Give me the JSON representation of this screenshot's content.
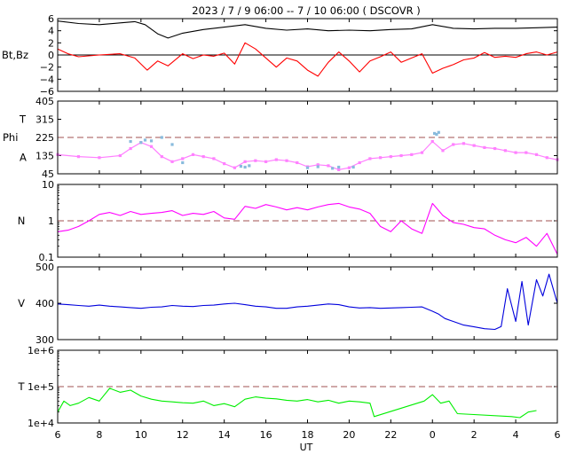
{
  "title": "2023  /  7 /  9   06:00  --   7 / 10   06:00 ( DSCOVR )",
  "xlabel": "UT",
  "colors": {
    "bt": "#000000",
    "bz": "#ff0000",
    "theta": "#aaaaaa",
    "phi": "#88bbdd",
    "angle": "#ff80ff",
    "density": "#ff00ff",
    "speed": "#0000dd",
    "temperature": "#00ee00",
    "refline": "#a05050",
    "frame": "#000000"
  },
  "x_ticks": [
    "6",
    "8",
    "10",
    "12",
    "14",
    "16",
    "18",
    "20",
    "22",
    "0",
    "2",
    "4",
    "6"
  ],
  "chart_data": [
    {
      "type": "line",
      "ylabel": "Bt,Bz",
      "ylim": [
        -6,
        6
      ],
      "yticks": [
        "6",
        "4",
        "2",
        "0",
        "−2",
        "−4",
        "−6"
      ],
      "reference_line": 0,
      "series": [
        {
          "name": "Bt",
          "x": [
            6,
            7,
            8,
            9,
            9.7,
            10.2,
            10.8,
            11.3,
            12,
            13,
            14,
            15,
            16,
            17,
            18,
            19,
            20,
            21,
            22,
            23,
            24,
            25,
            26,
            27,
            28,
            29,
            30
          ],
          "values": [
            5.6,
            5.2,
            5.0,
            5.3,
            5.5,
            5.0,
            3.5,
            2.8,
            3.6,
            4.2,
            4.6,
            5.0,
            4.4,
            4.1,
            4.3,
            4.0,
            4.1,
            4.0,
            4.2,
            4.3,
            5.0,
            4.4,
            4.3,
            4.4,
            4.4,
            4.5,
            4.6
          ]
        },
        {
          "name": "Bz",
          "x": [
            6,
            6.5,
            7,
            8,
            9,
            9.7,
            10.3,
            10.8,
            11.3,
            12,
            12.5,
            13,
            13.5,
            14,
            14.5,
            15,
            15.5,
            16,
            16.5,
            17,
            17.5,
            18,
            18.5,
            19,
            19.5,
            20,
            20.5,
            21,
            21.5,
            22,
            22.5,
            23,
            23.5,
            24,
            24.5,
            25,
            25.5,
            26,
            26.5,
            27,
            27.5,
            28,
            28.5,
            29,
            29.5,
            30
          ],
          "values": [
            1.0,
            0.2,
            -0.3,
            0,
            0.2,
            -0.5,
            -2.5,
            -1.0,
            -1.8,
            0.2,
            -0.6,
            0,
            -0.2,
            0.3,
            -1.5,
            2.0,
            1.0,
            -0.5,
            -2.0,
            -0.5,
            -1.0,
            -2.5,
            -3.5,
            -1.2,
            0.5,
            -1.0,
            -2.8,
            -1.0,
            -0.3,
            0.5,
            -1.2,
            -0.5,
            0.2,
            -3.0,
            -2.2,
            -1.6,
            -0.8,
            -0.5,
            0.4,
            -0.4,
            -0.2,
            -0.4,
            0.2,
            0.5,
            0.0,
            0.5
          ]
        }
      ]
    },
    {
      "type": "scatter",
      "ylabel_lines": [
        "T",
        "Phi",
        "A"
      ],
      "ylim": [
        45,
        405
      ],
      "yticks": [
        "405",
        "315",
        "225",
        "135",
        "45"
      ],
      "reference_line": 225,
      "series": [
        {
          "name": "A",
          "x": [
            6,
            7,
            8,
            9,
            9.5,
            10,
            10.5,
            11,
            11.5,
            12,
            12.5,
            13,
            13.5,
            14,
            14.5,
            15,
            15.5,
            16,
            16.5,
            17,
            17.5,
            18,
            18.5,
            19,
            19.5,
            20,
            20.5,
            21,
            21.5,
            22,
            22.5,
            23,
            23.5,
            24,
            24.5,
            25,
            25.5,
            26,
            26.5,
            27,
            27.5,
            28,
            28.5,
            29,
            29.5,
            30
          ],
          "values": [
            140,
            130,
            125,
            135,
            170,
            200,
            180,
            130,
            105,
            120,
            140,
            130,
            120,
            95,
            75,
            105,
            110,
            105,
            115,
            110,
            100,
            80,
            90,
            85,
            65,
            75,
            100,
            120,
            125,
            130,
            135,
            140,
            150,
            205,
            160,
            190,
            195,
            185,
            175,
            170,
            160,
            150,
            150,
            140,
            125,
            115
          ]
        },
        {
          "name": "Phi",
          "x": [
            9.5,
            10,
            10.2,
            10.5,
            11,
            11.5,
            12,
            14.8,
            15,
            15.2,
            18,
            18.5,
            19.2,
            19.5,
            20.2,
            24.1,
            24.2,
            24.3
          ],
          "values": [
            205,
            200,
            212,
            208,
            225,
            190,
            100,
            82,
            78,
            85,
            75,
            80,
            72,
            78,
            78,
            245,
            240,
            250
          ]
        }
      ]
    },
    {
      "type": "line",
      "ylabel": "N",
      "ylim": [
        0.1,
        10
      ],
      "yscale": "log",
      "yticks": [
        "10",
        "1",
        "0.1"
      ],
      "reference_line": 1,
      "series": [
        {
          "name": "N",
          "x": [
            6,
            6.5,
            7,
            7.5,
            8,
            8.5,
            9,
            9.5,
            10,
            10.5,
            11,
            11.5,
            12,
            12.5,
            13,
            13.5,
            14,
            14.5,
            15,
            15.5,
            16,
            16.5,
            17,
            17.5,
            18,
            18.5,
            19,
            19.5,
            20,
            20.5,
            21,
            21.5,
            22,
            22.5,
            23,
            23.5,
            24,
            24.5,
            25,
            25.5,
            26,
            26.5,
            27,
            27.5,
            28,
            28.5,
            29,
            29.5,
            30
          ],
          "values": [
            0.5,
            0.55,
            0.7,
            1.0,
            1.5,
            1.7,
            1.4,
            1.8,
            1.5,
            1.6,
            1.7,
            1.9,
            1.4,
            1.6,
            1.5,
            1.8,
            1.2,
            1.1,
            2.5,
            2.2,
            2.8,
            2.4,
            2.0,
            2.3,
            2.0,
            2.4,
            2.8,
            3.0,
            2.4,
            2.1,
            1.6,
            0.7,
            0.5,
            1.0,
            0.6,
            0.45,
            3.0,
            1.4,
            0.9,
            0.8,
            0.65,
            0.6,
            0.4,
            0.3,
            0.25,
            0.35,
            0.2,
            0.45,
            0.12
          ]
        }
      ]
    },
    {
      "type": "line",
      "ylabel": "V",
      "ylim": [
        300,
        500
      ],
      "yticks": [
        "500",
        "400",
        "300"
      ],
      "series": [
        {
          "name": "V",
          "x": [
            6,
            6.5,
            7,
            7.5,
            8,
            8.5,
            9,
            9.5,
            10,
            10.5,
            11,
            11.5,
            12,
            12.5,
            13,
            13.5,
            14,
            14.5,
            15,
            15.5,
            16,
            16.5,
            17,
            17.5,
            18,
            18.5,
            19,
            19.5,
            20,
            20.5,
            21,
            21.5,
            22,
            22.5,
            23,
            23.5,
            24,
            24.3,
            24.6,
            25,
            25.5,
            26,
            26.5,
            27,
            27.3,
            27.6,
            28,
            28.3,
            28.6,
            29,
            29.3,
            29.6,
            30
          ],
          "values": [
            398,
            396,
            394,
            392,
            395,
            392,
            390,
            388,
            386,
            389,
            390,
            394,
            392,
            391,
            394,
            395,
            398,
            400,
            396,
            392,
            390,
            386,
            386,
            390,
            392,
            395,
            398,
            396,
            390,
            387,
            388,
            386,
            387,
            388,
            389,
            390,
            378,
            370,
            358,
            350,
            340,
            335,
            330,
            328,
            336,
            440,
            350,
            460,
            340,
            465,
            420,
            480,
            400
          ]
        }
      ]
    },
    {
      "type": "line",
      "ylabel": "T",
      "ylim": [
        10000,
        1000000
      ],
      "yscale": "log",
      "yticks": [
        "1e+6",
        "1e+5",
        "1e+4"
      ],
      "reference_line": 100000,
      "series": [
        {
          "name": "T",
          "x": [
            6,
            6.3,
            6.6,
            7,
            7.5,
            8,
            8.5,
            9,
            9.5,
            10,
            10.5,
            11,
            11.5,
            12,
            12.5,
            13,
            13.5,
            14,
            14.5,
            15,
            15.5,
            16,
            16.5,
            17,
            17.5,
            18,
            18.5,
            19,
            19.5,
            20,
            20.5,
            21,
            21.2,
            23.6,
            24,
            24.4,
            24.8,
            25.2,
            27.8,
            28.2,
            28.6,
            29
          ],
          "values": [
            20000,
            40000,
            30000,
            35000,
            50000,
            40000,
            90000,
            70000,
            80000,
            55000,
            45000,
            40000,
            38000,
            36000,
            35000,
            40000,
            30000,
            34000,
            28000,
            45000,
            52000,
            48000,
            46000,
            42000,
            40000,
            44000,
            38000,
            42000,
            35000,
            40000,
            38000,
            35000,
            15000,
            40000,
            60000,
            35000,
            40000,
            18000,
            15000,
            14000,
            20000,
            22000
          ]
        }
      ]
    }
  ]
}
